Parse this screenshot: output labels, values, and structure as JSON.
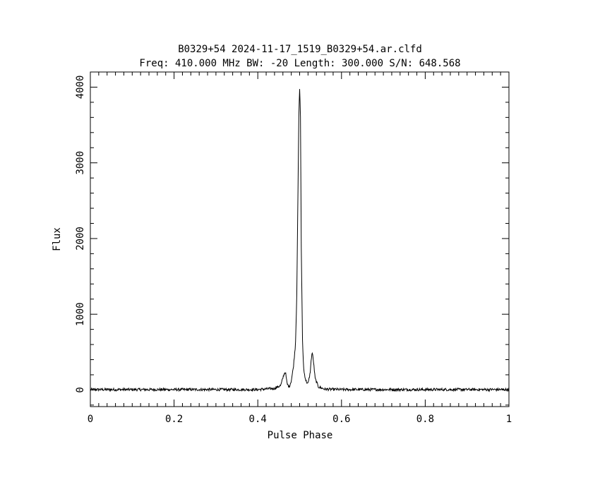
{
  "chart_data": {
    "type": "line",
    "title": "B0329+54 2024-11-17_1519_B0329+54.ar.clfd",
    "subtitle": "Freq: 410.000 MHz BW: -20 Length: 300.000 S/N: 648.568",
    "xlabel": "Pulse Phase",
    "ylabel": "Flux",
    "xlim": [
      0,
      1
    ],
    "ylim": [
      -220,
      4200
    ],
    "xticks": [
      0,
      0.2,
      0.4,
      0.6,
      0.8,
      1
    ],
    "xtick_labels": [
      "0",
      "0.2",
      "0.4",
      "0.6",
      "0.8",
      "1"
    ],
    "yticks": [
      0,
      1000,
      2000,
      3000,
      4000
    ],
    "ytick_labels": [
      "0",
      "1000",
      "2000",
      "3000",
      "4000"
    ],
    "grid": false,
    "series": [
      {
        "color": "#000000",
        "x": [
          0,
          0.05,
          0.1,
          0.15,
          0.2,
          0.25,
          0.3,
          0.35,
          0.4,
          0.44,
          0.455,
          0.462,
          0.466,
          0.47,
          0.475,
          0.48,
          0.485,
          0.49,
          0.493,
          0.496,
          0.498,
          0.5,
          0.502,
          0.504,
          0.507,
          0.51,
          0.515,
          0.52,
          0.525,
          0.528,
          0.53,
          0.533,
          0.537,
          0.545,
          0.56,
          0.6,
          0.65,
          0.7,
          0.75,
          0.8,
          0.85,
          0.9,
          0.95,
          1
        ],
        "y": [
          5,
          5,
          5,
          5,
          5,
          5,
          5,
          5,
          5,
          20,
          60,
          200,
          240,
          80,
          40,
          120,
          300,
          600,
          1200,
          2600,
          3600,
          3990,
          3600,
          1800,
          600,
          250,
          120,
          80,
          220,
          420,
          500,
          380,
          150,
          40,
          10,
          5,
          5,
          5,
          5,
          5,
          5,
          5,
          5,
          5
        ]
      }
    ]
  }
}
